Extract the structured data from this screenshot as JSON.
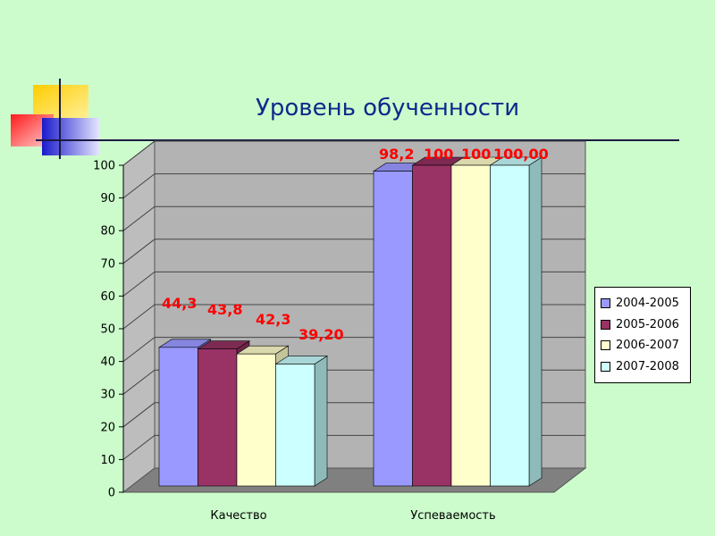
{
  "slide": {
    "title": "Уровень обученности"
  },
  "colors": {
    "background": "#ccfccc",
    "title": "#0d2a8c",
    "data_label": "#ff0000",
    "plot_back_wall": "#b3b3b3",
    "plot_floor": "#808080"
  },
  "chart_data": {
    "type": "bar",
    "style": "3d-clustered-column",
    "title": "",
    "categories": [
      "Качество",
      "Успеваемость"
    ],
    "series": [
      {
        "name": "2004-2005",
        "values": [
          44.3,
          98.2
        ],
        "labels": [
          "44,3",
          "98,2"
        ],
        "color": "#9999ff",
        "side": "#7a7acc",
        "top": "#8585e0"
      },
      {
        "name": "2005-2006",
        "values": [
          43.8,
          100
        ],
        "labels": [
          "43,8",
          "100"
        ],
        "color": "#993366",
        "side": "#6e2449",
        "top": "#7d2a53"
      },
      {
        "name": "2006-2007",
        "values": [
          42.3,
          100
        ],
        "labels": [
          "42,3",
          "100"
        ],
        "color": "#ffffcc",
        "side": "#c4c49a",
        "top": "#d9d9ad"
      },
      {
        "name": "2007-2008",
        "values": [
          39.2,
          100
        ],
        "labels": [
          "39,20",
          "100,00"
        ],
        "color": "#ccffff",
        "side": "#8fbaba",
        "top": "#a8d6d6"
      }
    ],
    "ylim": [
      0,
      100
    ],
    "yticks": [
      0,
      10,
      20,
      30,
      40,
      50,
      60,
      70,
      80,
      90,
      100
    ],
    "xlabel": "",
    "ylabel": "",
    "grid": true,
    "legend": "right"
  }
}
